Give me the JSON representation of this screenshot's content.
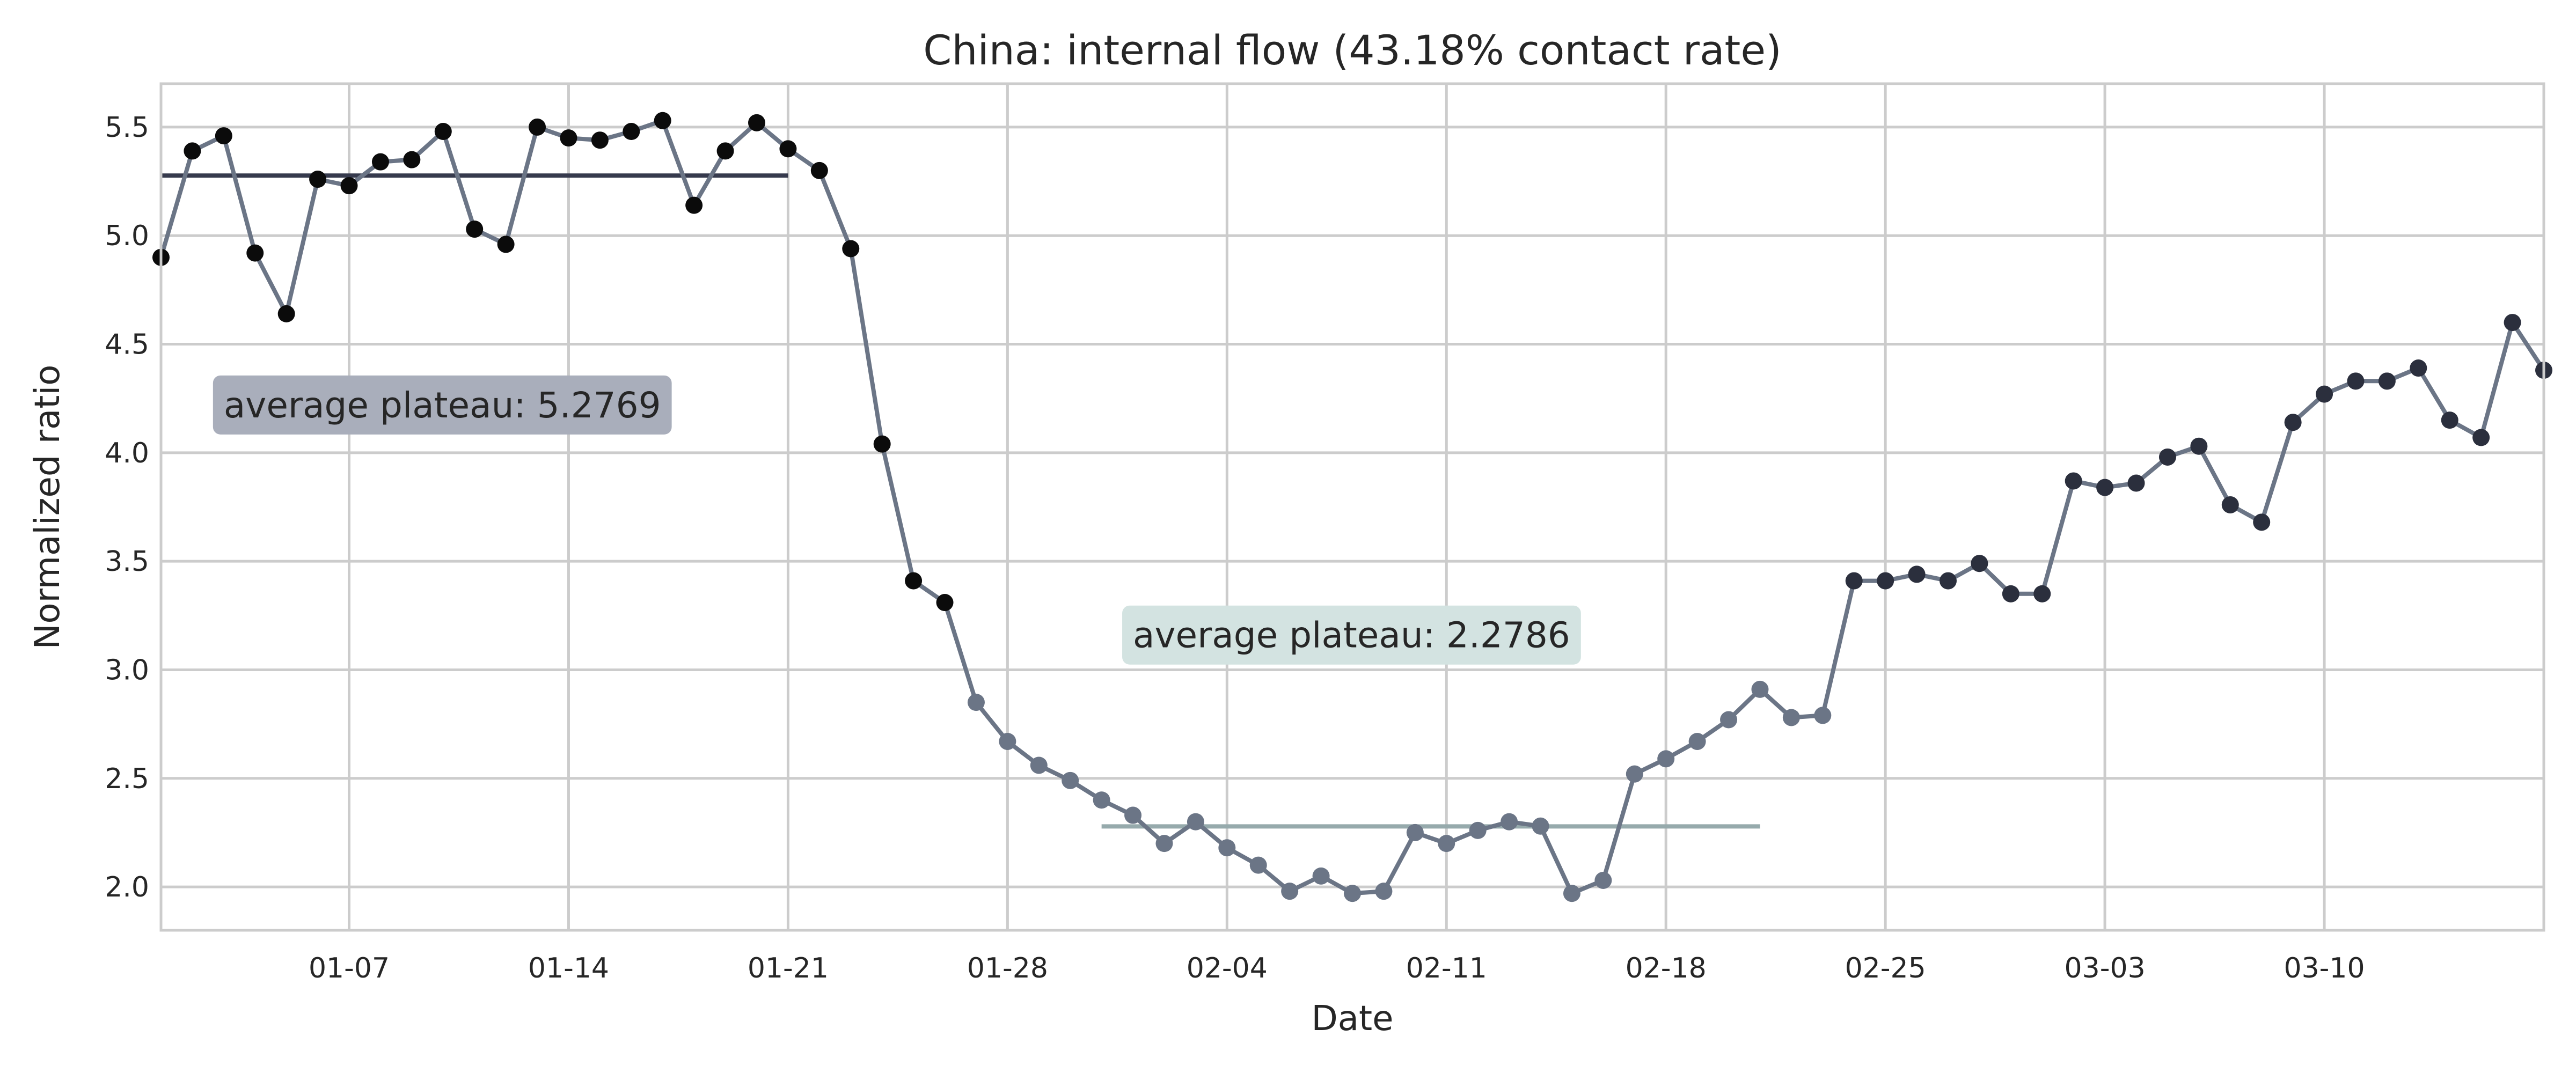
{
  "chart_data": {
    "type": "line",
    "title": "China: internal flow (43.18% contact rate)",
    "xlabel": "Date",
    "ylabel": "Normalized ratio",
    "x_start": "2020-01-01",
    "x_end": "2020-03-17",
    "ylim": [
      1.8,
      5.7
    ],
    "xticks": [
      {
        "date": "2020-01-07",
        "label": "01-07"
      },
      {
        "date": "2020-01-14",
        "label": "01-14"
      },
      {
        "date": "2020-01-21",
        "label": "01-21"
      },
      {
        "date": "2020-01-28",
        "label": "01-28"
      },
      {
        "date": "2020-02-04",
        "label": "02-04"
      },
      {
        "date": "2020-02-11",
        "label": "02-11"
      },
      {
        "date": "2020-02-18",
        "label": "02-18"
      },
      {
        "date": "2020-02-25",
        "label": "02-25"
      },
      {
        "date": "2020-03-03",
        "label": "03-03"
      },
      {
        "date": "2020-03-10",
        "label": "03-10"
      }
    ],
    "yticks": [
      {
        "value": 2.0,
        "label": "2.0"
      },
      {
        "value": 2.5,
        "label": "2.5"
      },
      {
        "value": 3.0,
        "label": "3.0"
      },
      {
        "value": 3.5,
        "label": "3.5"
      },
      {
        "value": 4.0,
        "label": "4.0"
      },
      {
        "value": 4.5,
        "label": "4.5"
      },
      {
        "value": 5.0,
        "label": "5.0"
      },
      {
        "value": 5.5,
        "label": "5.5"
      }
    ],
    "grid": true,
    "series": [
      {
        "line_color": "#6b7586",
        "x": [
          "2020-01-01",
          "2020-01-02",
          "2020-01-03",
          "2020-01-04",
          "2020-01-05",
          "2020-01-06",
          "2020-01-07",
          "2020-01-08",
          "2020-01-09",
          "2020-01-10",
          "2020-01-11",
          "2020-01-12",
          "2020-01-13",
          "2020-01-14",
          "2020-01-15",
          "2020-01-16",
          "2020-01-17",
          "2020-01-18",
          "2020-01-19",
          "2020-01-20",
          "2020-01-21",
          "2020-01-22",
          "2020-01-23",
          "2020-01-24",
          "2020-01-25",
          "2020-01-26",
          "2020-01-27",
          "2020-01-28",
          "2020-01-29",
          "2020-01-30",
          "2020-01-31",
          "2020-02-01",
          "2020-02-02",
          "2020-02-03",
          "2020-02-04",
          "2020-02-05",
          "2020-02-06",
          "2020-02-07",
          "2020-02-08",
          "2020-02-09",
          "2020-02-10",
          "2020-02-11",
          "2020-02-12",
          "2020-02-13",
          "2020-02-14",
          "2020-02-15",
          "2020-02-16",
          "2020-02-17",
          "2020-02-18",
          "2020-02-19",
          "2020-02-20",
          "2020-02-21",
          "2020-02-22",
          "2020-02-23",
          "2020-02-24",
          "2020-02-25",
          "2020-02-26",
          "2020-02-27",
          "2020-02-28",
          "2020-02-29",
          "2020-03-01",
          "2020-03-02",
          "2020-03-03",
          "2020-03-04",
          "2020-03-05",
          "2020-03-06",
          "2020-03-07",
          "2020-03-08",
          "2020-03-09",
          "2020-03-10",
          "2020-03-11",
          "2020-03-12",
          "2020-03-13",
          "2020-03-14",
          "2020-03-15",
          "2020-03-16",
          "2020-03-17"
        ],
        "y": [
          4.9,
          5.39,
          5.46,
          4.92,
          4.64,
          5.26,
          5.23,
          5.34,
          5.35,
          5.48,
          5.03,
          4.96,
          5.5,
          5.45,
          5.44,
          5.48,
          5.53,
          5.14,
          5.39,
          5.52,
          5.4,
          5.3,
          4.94,
          4.04,
          3.41,
          3.31,
          2.85,
          2.67,
          2.56,
          2.49,
          2.4,
          2.33,
          2.2,
          2.3,
          2.18,
          2.1,
          1.98,
          2.05,
          1.97,
          1.98,
          2.25,
          2.2,
          2.26,
          2.3,
          2.28,
          1.97,
          2.03,
          2.52,
          2.59,
          2.67,
          2.77,
          2.91,
          2.78,
          2.79,
          3.41,
          3.41,
          3.44,
          3.41,
          3.49,
          3.35,
          3.35,
          3.87,
          3.84,
          3.86,
          3.98,
          4.03,
          3.76,
          3.68,
          4.14,
          4.27,
          4.33,
          4.33,
          4.39,
          4.15,
          4.07,
          4.6,
          4.38
        ],
        "marker_colors": [
          "#0b0b0b",
          "#0b0b0b",
          "#0b0b0b",
          "#0b0b0b",
          "#0b0b0b",
          "#0b0b0b",
          "#0b0b0b",
          "#0b0b0b",
          "#0b0b0b",
          "#0b0b0b",
          "#0b0b0b",
          "#0b0b0b",
          "#0b0b0b",
          "#0b0b0b",
          "#0b0b0b",
          "#0b0b0b",
          "#0b0b0b",
          "#0b0b0b",
          "#0b0b0b",
          "#0b0b0b",
          "#0b0b0b",
          "#0b0b0b",
          "#0b0b0b",
          "#0b0b0b",
          "#0b0b0b",
          "#0b0b0b",
          "#6b7586",
          "#6b7586",
          "#6b7586",
          "#6b7586",
          "#6b7586",
          "#6b7586",
          "#6b7586",
          "#6b7586",
          "#6b7586",
          "#6b7586",
          "#6b7586",
          "#6b7586",
          "#6b7586",
          "#6b7586",
          "#6b7586",
          "#6b7586",
          "#6b7586",
          "#6b7586",
          "#6b7586",
          "#6b7586",
          "#6b7586",
          "#6b7586",
          "#6b7586",
          "#6b7586",
          "#6b7586",
          "#6b7586",
          "#6b7586",
          "#6b7586",
          "#2b2f3d",
          "#2b2f3d",
          "#2b2f3d",
          "#2b2f3d",
          "#2b2f3d",
          "#2b2f3d",
          "#2b2f3d",
          "#2b2f3d",
          "#2b2f3d",
          "#2b2f3d",
          "#2b2f3d",
          "#2b2f3d",
          "#2b2f3d",
          "#2b2f3d",
          "#2b2f3d",
          "#2b2f3d",
          "#2b2f3d",
          "#2b2f3d",
          "#2b2f3d",
          "#2b2f3d",
          "#2b2f3d",
          "#2b2f3d",
          "#2b2f3d"
        ]
      }
    ],
    "plateaus": [
      {
        "value": 5.2769,
        "x_from": "2020-01-01",
        "x_to": "2020-01-21",
        "color": "#363a4d",
        "label": "average plateau: 5.2769",
        "label_bg": "#a9aebb",
        "label_at": {
          "x": "2020-01-03",
          "y": 4.22
        }
      },
      {
        "value": 2.2786,
        "x_from": "2020-01-31",
        "x_to": "2020-02-21",
        "color": "#96aaac",
        "label": "average plateau: 2.2786",
        "label_bg": "#d3e3e1",
        "label_at": {
          "x": "2020-02-01",
          "y": 3.16
        }
      }
    ],
    "colors": {
      "grid": "#cccccc",
      "text": "#262626",
      "spine": "#cccccc"
    }
  }
}
